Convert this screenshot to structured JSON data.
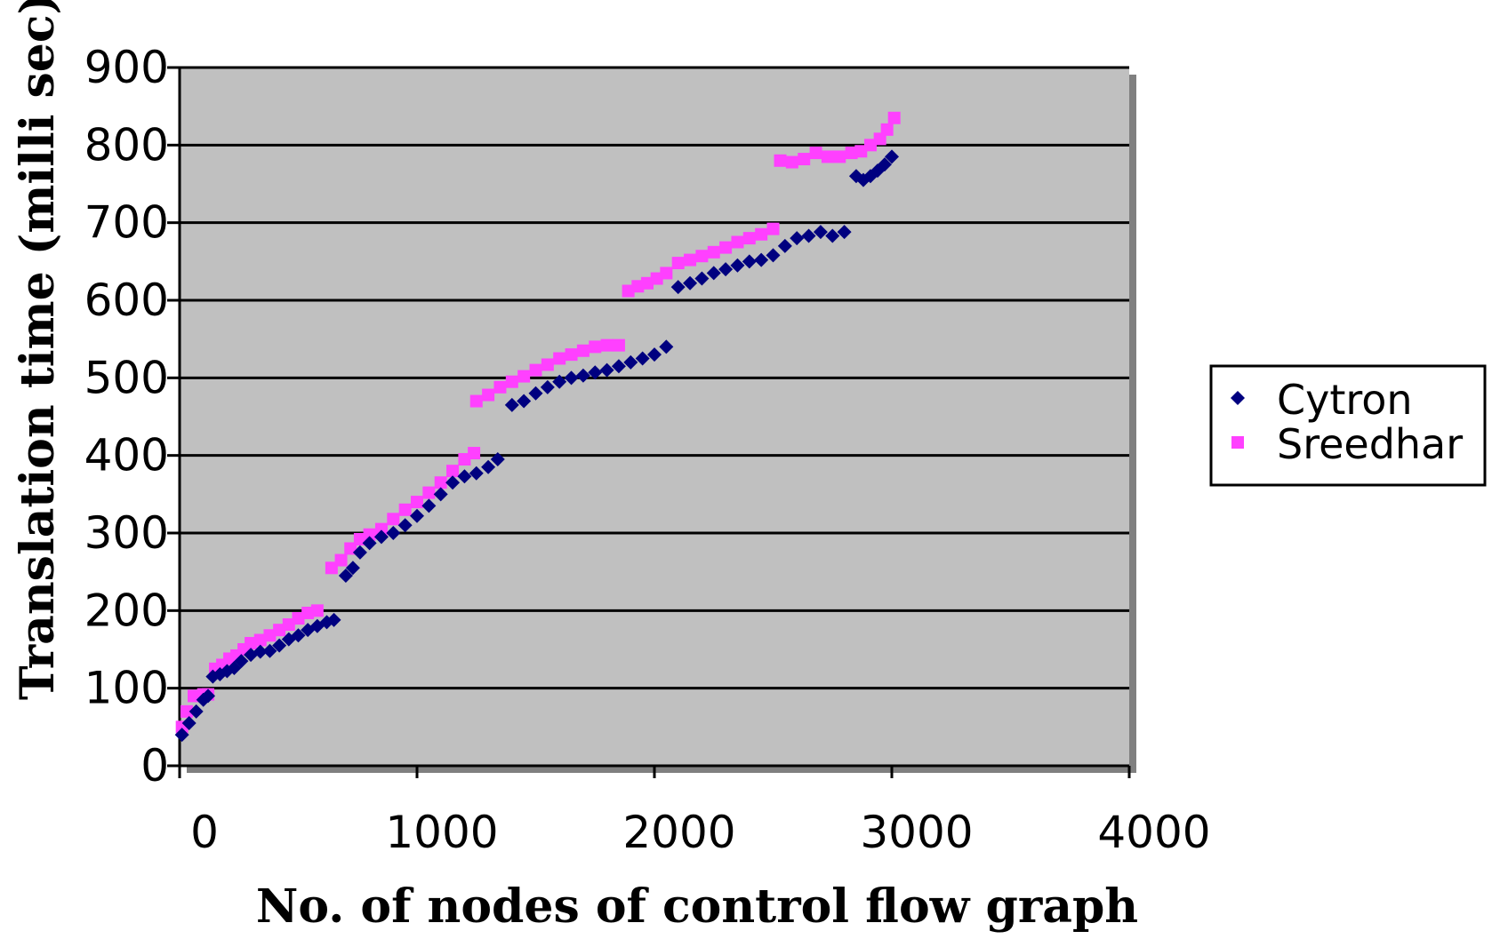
{
  "chart_data": {
    "type": "scatter",
    "title": "",
    "xlabel": "No. of nodes of control flow graph",
    "ylabel": "Translation time (milli sec)",
    "xlim": [
      0,
      4000
    ],
    "ylim": [
      0,
      900
    ],
    "x_ticks": [
      "0",
      "1000",
      "2000",
      "3000",
      "4000"
    ],
    "y_ticks": [
      "0",
      "100",
      "200",
      "300",
      "400",
      "500",
      "600",
      "700",
      "800",
      "900"
    ],
    "grid": true,
    "legend": "right",
    "plot_background": "#c0c0c0",
    "series": [
      {
        "name": "Cytron",
        "marker": "diamond",
        "color": "#000080",
        "points": [
          [
            10,
            40
          ],
          [
            40,
            55
          ],
          [
            70,
            70
          ],
          [
            100,
            85
          ],
          [
            120,
            90
          ],
          [
            140,
            115
          ],
          [
            170,
            118
          ],
          [
            200,
            122
          ],
          [
            230,
            126
          ],
          [
            260,
            135
          ],
          [
            300,
            143
          ],
          [
            340,
            147
          ],
          [
            380,
            148
          ],
          [
            420,
            155
          ],
          [
            460,
            163
          ],
          [
            500,
            168
          ],
          [
            540,
            175
          ],
          [
            580,
            180
          ],
          [
            620,
            185
          ],
          [
            650,
            188
          ],
          [
            700,
            245
          ],
          [
            730,
            255
          ],
          [
            760,
            275
          ],
          [
            800,
            287
          ],
          [
            850,
            295
          ],
          [
            900,
            300
          ],
          [
            950,
            310
          ],
          [
            1000,
            322
          ],
          [
            1050,
            335
          ],
          [
            1100,
            350
          ],
          [
            1150,
            365
          ],
          [
            1200,
            373
          ],
          [
            1250,
            377
          ],
          [
            1300,
            385
          ],
          [
            1340,
            395
          ],
          [
            1400,
            465
          ],
          [
            1450,
            470
          ],
          [
            1500,
            480
          ],
          [
            1550,
            488
          ],
          [
            1600,
            495
          ],
          [
            1650,
            500
          ],
          [
            1700,
            503
          ],
          [
            1750,
            507
          ],
          [
            1800,
            510
          ],
          [
            1850,
            515
          ],
          [
            1900,
            520
          ],
          [
            1950,
            525
          ],
          [
            2000,
            530
          ],
          [
            2050,
            540
          ],
          [
            2100,
            617
          ],
          [
            2150,
            622
          ],
          [
            2200,
            628
          ],
          [
            2250,
            635
          ],
          [
            2300,
            640
          ],
          [
            2350,
            645
          ],
          [
            2400,
            650
          ],
          [
            2450,
            652
          ],
          [
            2500,
            658
          ],
          [
            2550,
            670
          ],
          [
            2600,
            680
          ],
          [
            2650,
            683
          ],
          [
            2700,
            688
          ],
          [
            2750,
            683
          ],
          [
            2800,
            688
          ],
          [
            2850,
            760
          ],
          [
            2880,
            755
          ],
          [
            2910,
            760
          ],
          [
            2940,
            767
          ],
          [
            2970,
            775
          ],
          [
            3000,
            785
          ]
        ]
      },
      {
        "name": "Sreedhar",
        "marker": "square",
        "color": "#ff40ff",
        "points": [
          [
            10,
            50
          ],
          [
            30,
            70
          ],
          [
            60,
            90
          ],
          [
            100,
            92
          ],
          [
            120,
            92
          ],
          [
            150,
            125
          ],
          [
            180,
            130
          ],
          [
            210,
            138
          ],
          [
            240,
            142
          ],
          [
            270,
            150
          ],
          [
            300,
            158
          ],
          [
            340,
            162
          ],
          [
            380,
            168
          ],
          [
            420,
            175
          ],
          [
            460,
            182
          ],
          [
            500,
            190
          ],
          [
            540,
            197
          ],
          [
            580,
            200
          ],
          [
            640,
            255
          ],
          [
            680,
            265
          ],
          [
            720,
            280
          ],
          [
            760,
            292
          ],
          [
            800,
            298
          ],
          [
            850,
            305
          ],
          [
            900,
            318
          ],
          [
            950,
            330
          ],
          [
            1000,
            340
          ],
          [
            1050,
            352
          ],
          [
            1100,
            365
          ],
          [
            1150,
            380
          ],
          [
            1200,
            395
          ],
          [
            1240,
            403
          ],
          [
            1250,
            470
          ],
          [
            1300,
            478
          ],
          [
            1350,
            488
          ],
          [
            1400,
            495
          ],
          [
            1450,
            502
          ],
          [
            1500,
            510
          ],
          [
            1550,
            517
          ],
          [
            1600,
            525
          ],
          [
            1650,
            530
          ],
          [
            1700,
            535
          ],
          [
            1750,
            540
          ],
          [
            1800,
            542
          ],
          [
            1850,
            542
          ],
          [
            1890,
            612
          ],
          [
            1930,
            618
          ],
          [
            1970,
            622
          ],
          [
            2010,
            628
          ],
          [
            2050,
            635
          ],
          [
            2100,
            648
          ],
          [
            2150,
            652
          ],
          [
            2200,
            657
          ],
          [
            2250,
            662
          ],
          [
            2300,
            668
          ],
          [
            2350,
            675
          ],
          [
            2400,
            680
          ],
          [
            2450,
            685
          ],
          [
            2500,
            692
          ],
          [
            2530,
            780
          ],
          [
            2580,
            778
          ],
          [
            2630,
            782
          ],
          [
            2680,
            790
          ],
          [
            2730,
            785
          ],
          [
            2780,
            785
          ],
          [
            2830,
            790
          ],
          [
            2870,
            792
          ],
          [
            2910,
            800
          ],
          [
            2950,
            808
          ],
          [
            2980,
            820
          ],
          [
            3010,
            835
          ]
        ]
      }
    ]
  }
}
